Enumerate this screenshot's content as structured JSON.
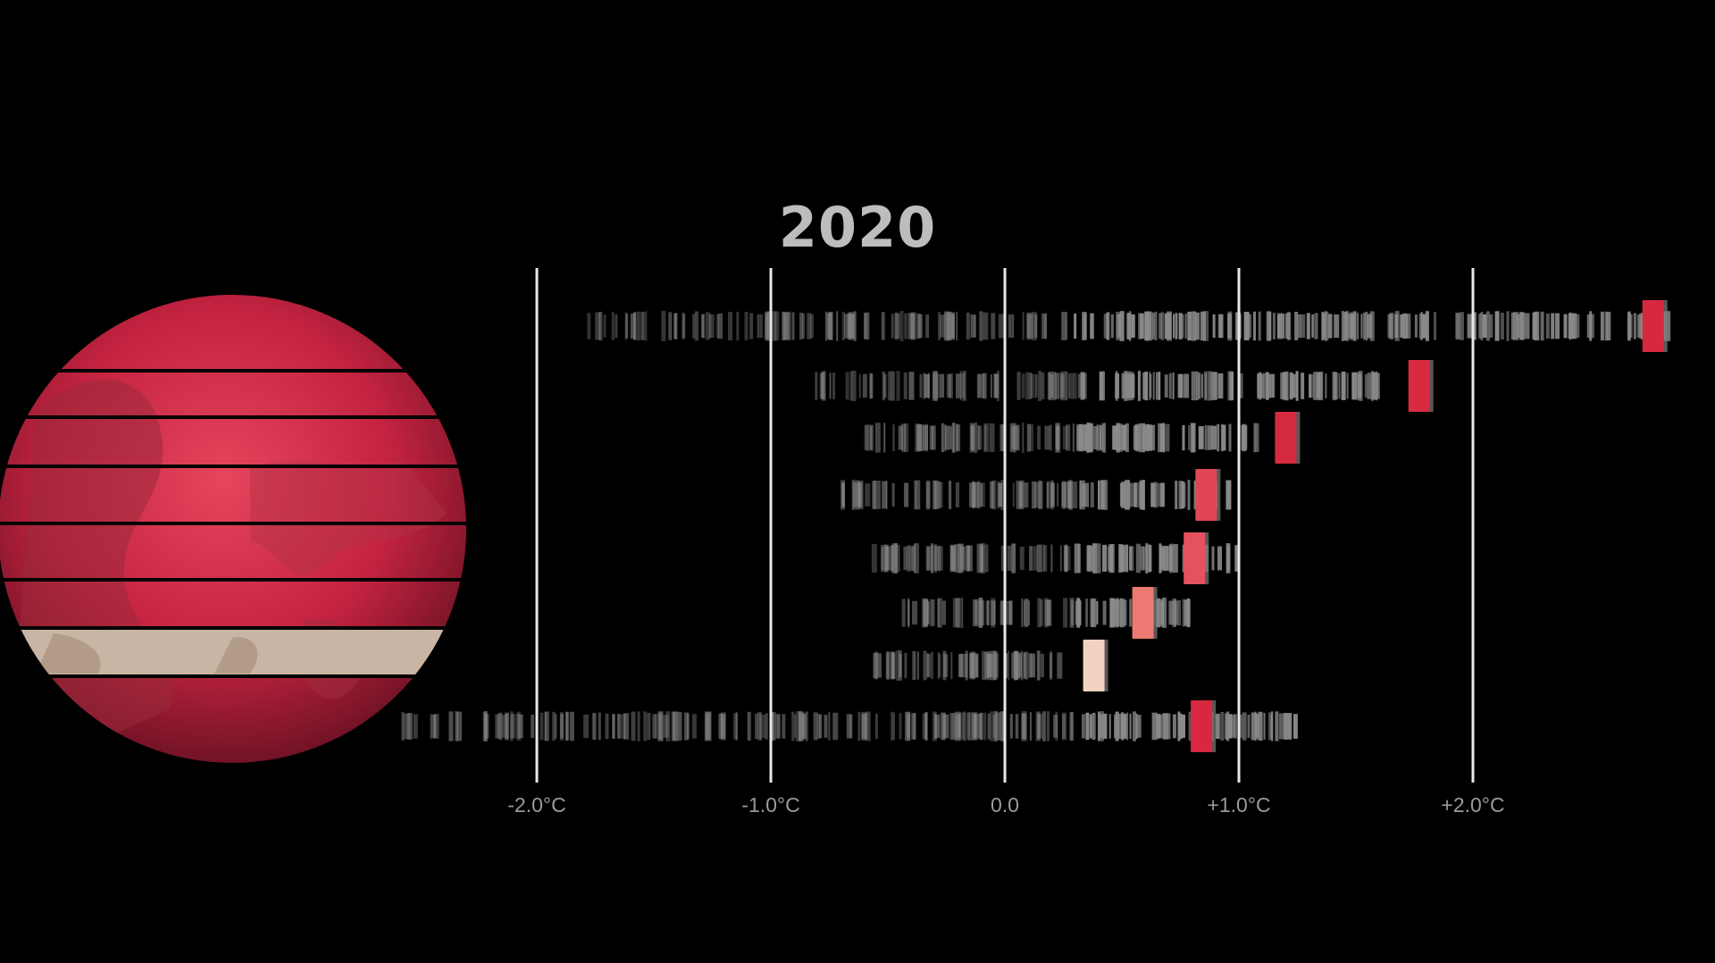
{
  "chart_data": {
    "type": "strip",
    "title": "2020",
    "xlim": [
      -2.2,
      2.9
    ],
    "x_ticks": [
      {
        "value": -2.0,
        "label": "-2.0°C"
      },
      {
        "value": -1.0,
        "label": "-1.0°C"
      },
      {
        "value": 0.0,
        "label": "0.0"
      },
      {
        "value": 1.0,
        "label": "+1.0°C"
      },
      {
        "value": 2.0,
        "label": "+2.0°C"
      }
    ],
    "grid": true,
    "colors": {
      "background": "#000000",
      "highlight": "#d8283f",
      "gridline": "#e8e8e8",
      "history": "#8a8a8a"
    },
    "bands": [
      {
        "band": 1,
        "min": -1.78,
        "max": 2.87,
        "current": 2.77,
        "current_color": "#d8283f"
      },
      {
        "band": 2,
        "min": -0.81,
        "max": 1.6,
        "current": 1.77,
        "current_color": "#d92a40"
      },
      {
        "band": 3,
        "min": -0.63,
        "max": 1.1,
        "current": 1.2,
        "current_color": "#d62a3e"
      },
      {
        "band": 4,
        "min": -0.72,
        "max": 0.98,
        "current": 0.86,
        "current_color": "#e14654"
      },
      {
        "band": 5,
        "min": -0.58,
        "max": 1.0,
        "current": 0.81,
        "current_color": "#e5525e"
      },
      {
        "band": 6,
        "min": -0.45,
        "max": 0.8,
        "current": 0.59,
        "current_color": "#ec7a72"
      },
      {
        "band": 7,
        "min": -0.56,
        "max": 0.24,
        "current": 0.38,
        "current_color": "#f2d2c0"
      },
      {
        "band": 8,
        "min": -2.6,
        "max": 1.25,
        "current": 0.84,
        "current_color": "#d8283f"
      }
    ]
  }
}
